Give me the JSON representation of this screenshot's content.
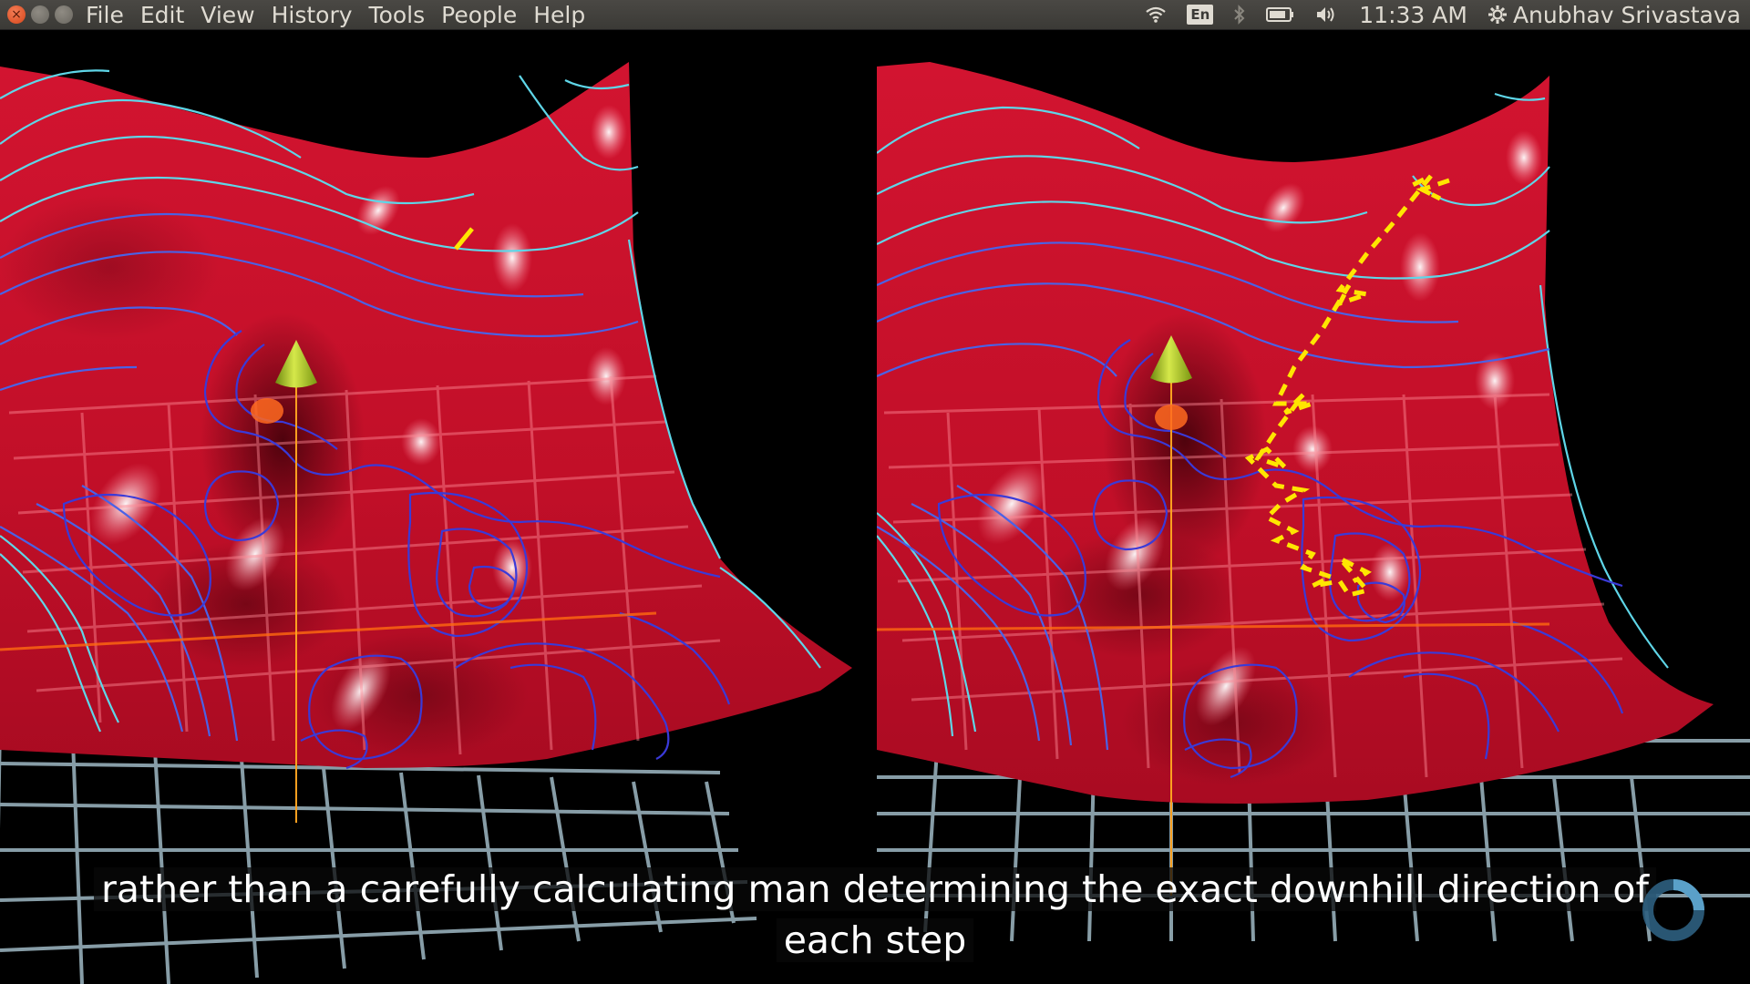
{
  "menu": {
    "items": [
      "File",
      "Edit",
      "View",
      "History",
      "Tools",
      "People",
      "Help"
    ]
  },
  "tray": {
    "keyboard_layout": "En",
    "time": "11:33 AM",
    "user": "Anubhav Srivastava"
  },
  "subtitle": {
    "line1": "rather than a carefully calculating man determining the exact downhill direction of",
    "line2": "each step"
  },
  "icons": {
    "wifi": "wifi-icon",
    "bluetooth": "bluetooth-icon",
    "battery": "battery-icon",
    "volume": "volume-icon",
    "settings": "gear-icon"
  },
  "colors": {
    "surface": "#c8102e",
    "contour_light": "#5fd6e8",
    "contour_dark": "#3a3ad8",
    "cone": "#a8c020",
    "path": "#ffe600"
  }
}
